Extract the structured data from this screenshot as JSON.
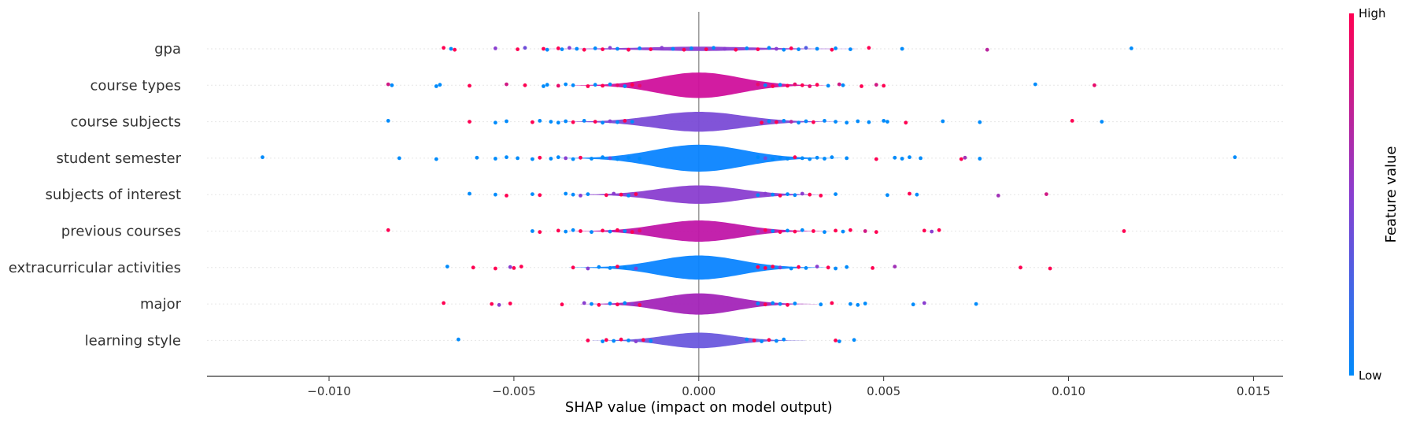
{
  "chart_data": {
    "type": "scatter",
    "subtype": "shap-violin-summary",
    "title": "",
    "xlabel": "SHAP value (impact on model output)",
    "xlim": [
      -0.0133,
      0.0158
    ],
    "xticks": [
      -0.01,
      -0.005,
      0.0,
      0.005,
      0.01,
      0.015
    ],
    "xtick_labels": [
      "−0.010",
      "−0.005",
      "0.000",
      "0.005",
      "0.010",
      "0.015"
    ],
    "grid": false,
    "colorbar": {
      "label": "Feature value",
      "high_label": "High",
      "low_label": "Low",
      "low_color": "#008bfb",
      "high_color": "#ff0052"
    },
    "features": [
      {
        "name": "gpa",
        "violin_color": "#8a3ed0",
        "density_peak": 0.15,
        "density_sd": 0.0015,
        "points": [
          [
            -0.0069,
            1
          ],
          [
            -0.0067,
            0
          ],
          [
            -0.0066,
            1
          ],
          [
            -0.0055,
            0.5
          ],
          [
            -0.0049,
            1
          ],
          [
            -0.0047,
            0.4
          ],
          [
            -0.0042,
            1
          ],
          [
            -0.0041,
            0
          ],
          [
            -0.0038,
            1
          ],
          [
            -0.0037,
            0
          ],
          [
            -0.0035,
            0.5
          ],
          [
            -0.0033,
            0
          ],
          [
            -0.0031,
            1
          ],
          [
            -0.0028,
            0
          ],
          [
            -0.0026,
            1
          ],
          [
            -0.0024,
            0.5
          ],
          [
            -0.0022,
            0
          ],
          [
            -0.0019,
            1
          ],
          [
            -0.0016,
            0
          ],
          [
            -0.0013,
            1
          ],
          [
            -0.001,
            0.5
          ],
          [
            -0.0007,
            0
          ],
          [
            -0.0004,
            1
          ],
          [
            -0.0002,
            0
          ],
          [
            0.0002,
            1
          ],
          [
            0.0004,
            0
          ],
          [
            0.0007,
            0.5
          ],
          [
            0.001,
            1
          ],
          [
            0.0013,
            0
          ],
          [
            0.0016,
            1
          ],
          [
            0.0019,
            0
          ],
          [
            0.0021,
            0.5
          ],
          [
            0.0023,
            0
          ],
          [
            0.0025,
            1
          ],
          [
            0.0027,
            0
          ],
          [
            0.0029,
            0.3
          ],
          [
            0.0032,
            0
          ],
          [
            0.0036,
            1
          ],
          [
            0.0037,
            0
          ],
          [
            0.0041,
            0
          ],
          [
            0.0046,
            1
          ],
          [
            0.0055,
            0
          ],
          [
            0.0078,
            0.7
          ],
          [
            0.0117,
            0
          ]
        ]
      },
      {
        "name": "course types",
        "violin_color": "#d0109c",
        "density_peak": 0.9,
        "density_sd": 0.0011,
        "points": [
          [
            -0.0084,
            0.8
          ],
          [
            -0.0083,
            0
          ],
          [
            -0.0071,
            0
          ],
          [
            -0.007,
            0
          ],
          [
            -0.0062,
            1
          ],
          [
            -0.0052,
            0.8
          ],
          [
            -0.0047,
            1
          ],
          [
            -0.0042,
            0
          ],
          [
            -0.0041,
            0
          ],
          [
            -0.0038,
            0.9
          ],
          [
            -0.0036,
            0
          ],
          [
            -0.0034,
            0
          ],
          [
            -0.003,
            1
          ],
          [
            -0.0028,
            0
          ],
          [
            -0.0026,
            1
          ],
          [
            -0.0024,
            0
          ],
          [
            -0.0022,
            0.9
          ],
          [
            -0.002,
            0
          ],
          [
            -0.0018,
            1
          ],
          [
            -0.0016,
            0.9
          ],
          [
            0.0016,
            0.9
          ],
          [
            0.0018,
            0
          ],
          [
            0.002,
            1
          ],
          [
            0.0022,
            0
          ],
          [
            0.0024,
            1
          ],
          [
            0.0026,
            0.9
          ],
          [
            0.0028,
            1
          ],
          [
            0.003,
            0.9
          ],
          [
            0.0032,
            1
          ],
          [
            0.0035,
            0
          ],
          [
            0.0038,
            0.8
          ],
          [
            0.0039,
            0
          ],
          [
            0.0044,
            1
          ],
          [
            0.0048,
            0.8
          ],
          [
            0.005,
            1
          ],
          [
            0.0091,
            0
          ],
          [
            0.0107,
            0.9
          ]
        ]
      },
      {
        "name": "course subjects",
        "violin_color": "#7a4bd6",
        "density_peak": 0.7,
        "density_sd": 0.0012,
        "points": [
          [
            -0.0084,
            0
          ],
          [
            -0.0062,
            1
          ],
          [
            -0.0055,
            0
          ],
          [
            -0.0052,
            0
          ],
          [
            -0.0045,
            1
          ],
          [
            -0.0043,
            0
          ],
          [
            -0.004,
            0
          ],
          [
            -0.0038,
            0
          ],
          [
            -0.0036,
            0
          ],
          [
            -0.0034,
            1
          ],
          [
            -0.0031,
            0
          ],
          [
            -0.0028,
            1
          ],
          [
            -0.0026,
            0
          ],
          [
            -0.0024,
            0.5
          ],
          [
            -0.0022,
            0
          ],
          [
            -0.002,
            1
          ],
          [
            -0.0018,
            0
          ],
          [
            0.0017,
            1
          ],
          [
            0.0019,
            0
          ],
          [
            0.0021,
            1
          ],
          [
            0.0023,
            0
          ],
          [
            0.0025,
            0.7
          ],
          [
            0.0027,
            0
          ],
          [
            0.0029,
            0
          ],
          [
            0.0031,
            1
          ],
          [
            0.0034,
            0
          ],
          [
            0.0037,
            0
          ],
          [
            0.004,
            0
          ],
          [
            0.0043,
            0
          ],
          [
            0.0046,
            0
          ],
          [
            0.005,
            0
          ],
          [
            0.0051,
            0
          ],
          [
            0.0056,
            1
          ],
          [
            0.0066,
            0
          ],
          [
            0.0076,
            0
          ],
          [
            0.0101,
            1
          ],
          [
            0.0109,
            0
          ]
        ]
      },
      {
        "name": "student semester",
        "violin_color": "#0a84ff",
        "density_peak": 0.95,
        "density_sd": 0.0012,
        "points": [
          [
            -0.0118,
            0
          ],
          [
            -0.0081,
            0
          ],
          [
            -0.0071,
            0
          ],
          [
            -0.006,
            0
          ],
          [
            -0.0055,
            0
          ],
          [
            -0.0052,
            0
          ],
          [
            -0.0049,
            0
          ],
          [
            -0.0045,
            0
          ],
          [
            -0.0043,
            1
          ],
          [
            -0.004,
            0
          ],
          [
            -0.0038,
            0
          ],
          [
            -0.0036,
            0.5
          ],
          [
            -0.0034,
            0
          ],
          [
            -0.0032,
            1
          ],
          [
            -0.0029,
            0
          ],
          [
            -0.0026,
            0
          ],
          [
            -0.0024,
            0.4
          ],
          [
            -0.0022,
            0
          ],
          [
            -0.0019,
            0
          ],
          [
            -0.0016,
            0
          ],
          [
            0.0016,
            0
          ],
          [
            0.0018,
            0.4
          ],
          [
            0.002,
            0
          ],
          [
            0.0022,
            0
          ],
          [
            0.0024,
            0
          ],
          [
            0.0026,
            1
          ],
          [
            0.0028,
            0
          ],
          [
            0.003,
            0
          ],
          [
            0.0032,
            0
          ],
          [
            0.0034,
            0
          ],
          [
            0.0036,
            0
          ],
          [
            0.004,
            0
          ],
          [
            0.0048,
            1
          ],
          [
            0.0053,
            0
          ],
          [
            0.0055,
            0
          ],
          [
            0.0057,
            0
          ],
          [
            0.006,
            0
          ],
          [
            0.0071,
            1
          ],
          [
            0.0072,
            0.6
          ],
          [
            0.0076,
            0
          ],
          [
            0.0145,
            0
          ]
        ]
      },
      {
        "name": "subjects of interest",
        "violin_color": "#8a3ed0",
        "density_peak": 0.65,
        "density_sd": 0.0011,
        "points": [
          [
            -0.0062,
            0
          ],
          [
            -0.0055,
            0
          ],
          [
            -0.0052,
            1
          ],
          [
            -0.0045,
            0
          ],
          [
            -0.0043,
            1
          ],
          [
            -0.0036,
            0
          ],
          [
            -0.0034,
            0
          ],
          [
            -0.0032,
            0.5
          ],
          [
            -0.003,
            0
          ],
          [
            -0.0025,
            1
          ],
          [
            -0.0023,
            0.5
          ],
          [
            -0.0021,
            1
          ],
          [
            -0.0019,
            0
          ],
          [
            -0.0017,
            1
          ],
          [
            0.0016,
            0
          ],
          [
            0.0018,
            0.5
          ],
          [
            0.002,
            0
          ],
          [
            0.0022,
            1
          ],
          [
            0.0024,
            0
          ],
          [
            0.0026,
            0
          ],
          [
            0.0028,
            0.5
          ],
          [
            0.003,
            1
          ],
          [
            0.0033,
            1
          ],
          [
            0.0037,
            0
          ],
          [
            0.0051,
            0
          ],
          [
            0.0057,
            1
          ],
          [
            0.0059,
            0
          ],
          [
            0.0081,
            0.6
          ],
          [
            0.0094,
            0.8
          ]
        ]
      },
      {
        "name": "previous courses",
        "violin_color": "#c016a8",
        "density_peak": 0.75,
        "density_sd": 0.0011,
        "points": [
          [
            -0.0084,
            1
          ],
          [
            -0.0045,
            0
          ],
          [
            -0.0043,
            1
          ],
          [
            -0.0038,
            1
          ],
          [
            -0.0036,
            0
          ],
          [
            -0.0034,
            0
          ],
          [
            -0.0032,
            1
          ],
          [
            -0.0029,
            0
          ],
          [
            -0.0026,
            1
          ],
          [
            -0.0024,
            0
          ],
          [
            -0.0022,
            1
          ],
          [
            -0.002,
            0
          ],
          [
            -0.0018,
            1
          ],
          [
            -0.0016,
            0.9
          ],
          [
            0.0016,
            0.5
          ],
          [
            0.0018,
            1
          ],
          [
            0.002,
            0
          ],
          [
            0.0022,
            1
          ],
          [
            0.0024,
            0
          ],
          [
            0.0026,
            1
          ],
          [
            0.0028,
            0
          ],
          [
            0.0031,
            1
          ],
          [
            0.0034,
            0
          ],
          [
            0.0037,
            1
          ],
          [
            0.0039,
            0
          ],
          [
            0.0041,
            1
          ],
          [
            0.0045,
            0.8
          ],
          [
            0.0048,
            1
          ],
          [
            0.0061,
            1
          ],
          [
            0.0063,
            0.5
          ],
          [
            0.0065,
            1
          ],
          [
            0.0115,
            1
          ]
        ]
      },
      {
        "name": "extracurricular activities",
        "violin_color": "#0a84ff",
        "density_peak": 0.85,
        "density_sd": 0.0011,
        "points": [
          [
            -0.0068,
            0
          ],
          [
            -0.0061,
            1
          ],
          [
            -0.0055,
            1
          ],
          [
            -0.0051,
            0.5
          ],
          [
            -0.005,
            1
          ],
          [
            -0.0048,
            1
          ],
          [
            -0.0034,
            1
          ],
          [
            -0.003,
            0.5
          ],
          [
            -0.0027,
            0
          ],
          [
            -0.0024,
            0
          ],
          [
            -0.0022,
            1
          ],
          [
            -0.002,
            0
          ],
          [
            -0.0017,
            0.5
          ],
          [
            0.0016,
            1
          ],
          [
            0.0018,
            1
          ],
          [
            0.002,
            1
          ],
          [
            0.0022,
            0.5
          ],
          [
            0.0025,
            0
          ],
          [
            0.0027,
            1
          ],
          [
            0.0029,
            0
          ],
          [
            0.0032,
            0.5
          ],
          [
            0.0035,
            1
          ],
          [
            0.0037,
            0
          ],
          [
            0.004,
            0
          ],
          [
            0.0047,
            1
          ],
          [
            0.0053,
            0.6
          ],
          [
            0.0087,
            1
          ],
          [
            0.0095,
            1
          ]
        ]
      },
      {
        "name": "major",
        "violin_color": "#a324b8",
        "density_peak": 0.75,
        "density_sd": 0.001,
        "points": [
          [
            -0.0069,
            1
          ],
          [
            -0.0056,
            1
          ],
          [
            -0.0054,
            0.5
          ],
          [
            -0.0051,
            1
          ],
          [
            -0.0037,
            1
          ],
          [
            -0.0031,
            0.5
          ],
          [
            -0.0029,
            0
          ],
          [
            -0.0027,
            1
          ],
          [
            -0.0024,
            0
          ],
          [
            -0.0022,
            1
          ],
          [
            -0.002,
            0
          ],
          [
            -0.0018,
            0.5
          ],
          [
            -0.0016,
            1
          ],
          [
            0.0016,
            0
          ],
          [
            0.0018,
            1
          ],
          [
            0.002,
            0
          ],
          [
            0.0022,
            0
          ],
          [
            0.0024,
            1
          ],
          [
            0.0026,
            0
          ],
          [
            0.0033,
            0
          ],
          [
            0.0036,
            1
          ],
          [
            0.0041,
            0
          ],
          [
            0.0043,
            0
          ],
          [
            0.0045,
            0
          ],
          [
            0.0058,
            0
          ],
          [
            0.0061,
            0.5
          ],
          [
            0.0075,
            0
          ]
        ]
      },
      {
        "name": "learning style",
        "violin_color": "#6a58dd",
        "density_peak": 0.55,
        "density_sd": 0.0009,
        "points": [
          [
            -0.0065,
            0
          ],
          [
            -0.003,
            1
          ],
          [
            -0.0026,
            0
          ],
          [
            -0.0025,
            1
          ],
          [
            -0.0023,
            0
          ],
          [
            -0.0021,
            1
          ],
          [
            -0.0019,
            0
          ],
          [
            -0.0017,
            0.5
          ],
          [
            -0.0015,
            1
          ],
          [
            -0.0013,
            0
          ],
          [
            0.0013,
            0
          ],
          [
            0.0015,
            1
          ],
          [
            0.0017,
            0
          ],
          [
            0.0019,
            1
          ],
          [
            0.0021,
            0
          ],
          [
            0.0023,
            0
          ],
          [
            0.0037,
            1
          ],
          [
            0.0038,
            0
          ],
          [
            0.0042,
            0
          ]
        ]
      }
    ]
  }
}
